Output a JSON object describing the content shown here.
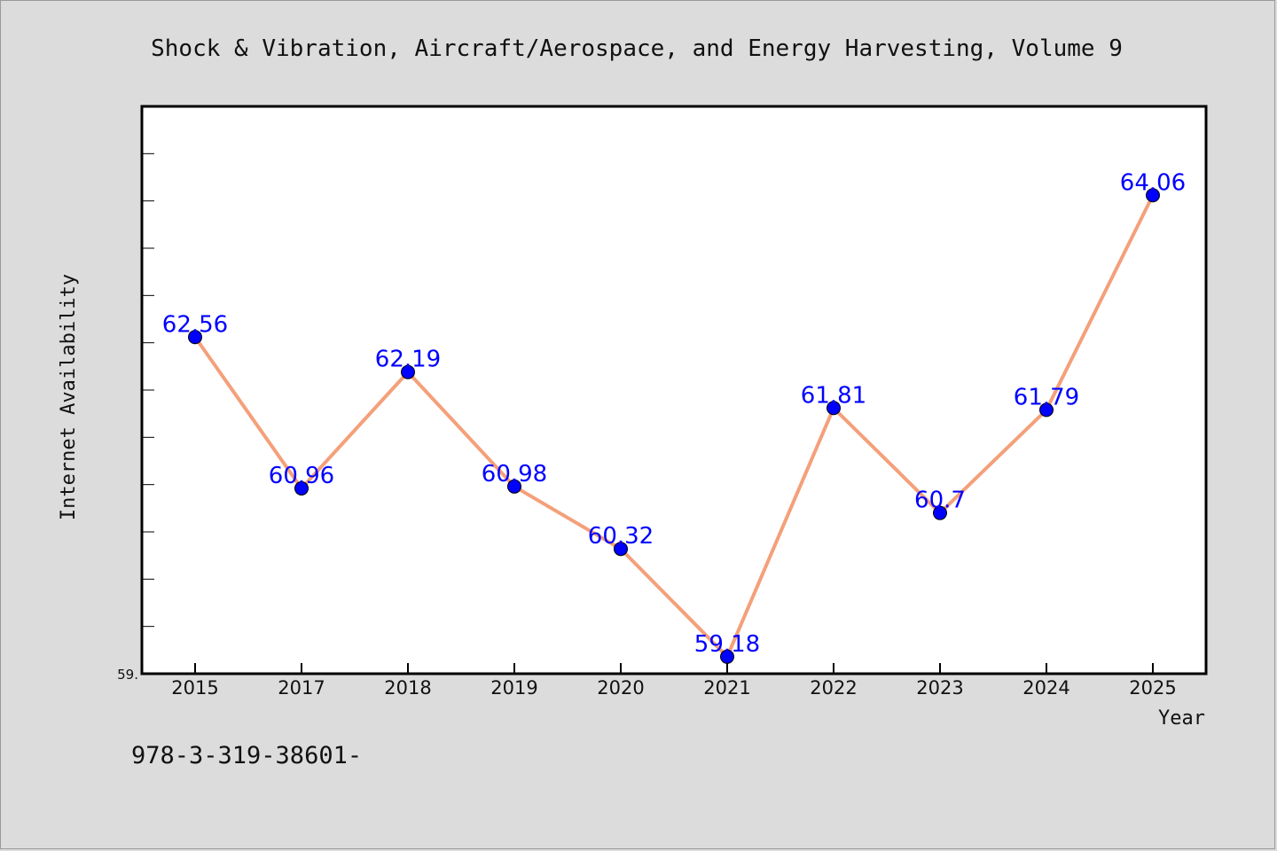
{
  "chart_data": {
    "type": "line",
    "title": "Shock & Vibration, Aircraft/Aerospace, and Energy Harvesting, Volume 9",
    "xlabel": "Year",
    "ylabel": "Internet Availability",
    "categories": [
      "2015",
      "2017",
      "2018",
      "2019",
      "2020",
      "2021",
      "2022",
      "2023",
      "2024",
      "2025"
    ],
    "values": [
      62.56,
      60.96,
      62.19,
      60.98,
      60.32,
      59.18,
      61.81,
      60.7,
      61.79,
      64.06
    ],
    "data_labels": [
      "62.56",
      "60.96",
      "62.19",
      "60.98",
      "60.32",
      "59.18",
      "61.81",
      "60.7",
      "61.79",
      "64.06"
    ],
    "ylim": [
      59.0,
      65.0
    ],
    "y_tick_label": "59.",
    "grid": false,
    "legend": false,
    "line_color": "#f4a07a",
    "marker_color": "#0000ff"
  },
  "footnote": "978-3-319-38601-"
}
